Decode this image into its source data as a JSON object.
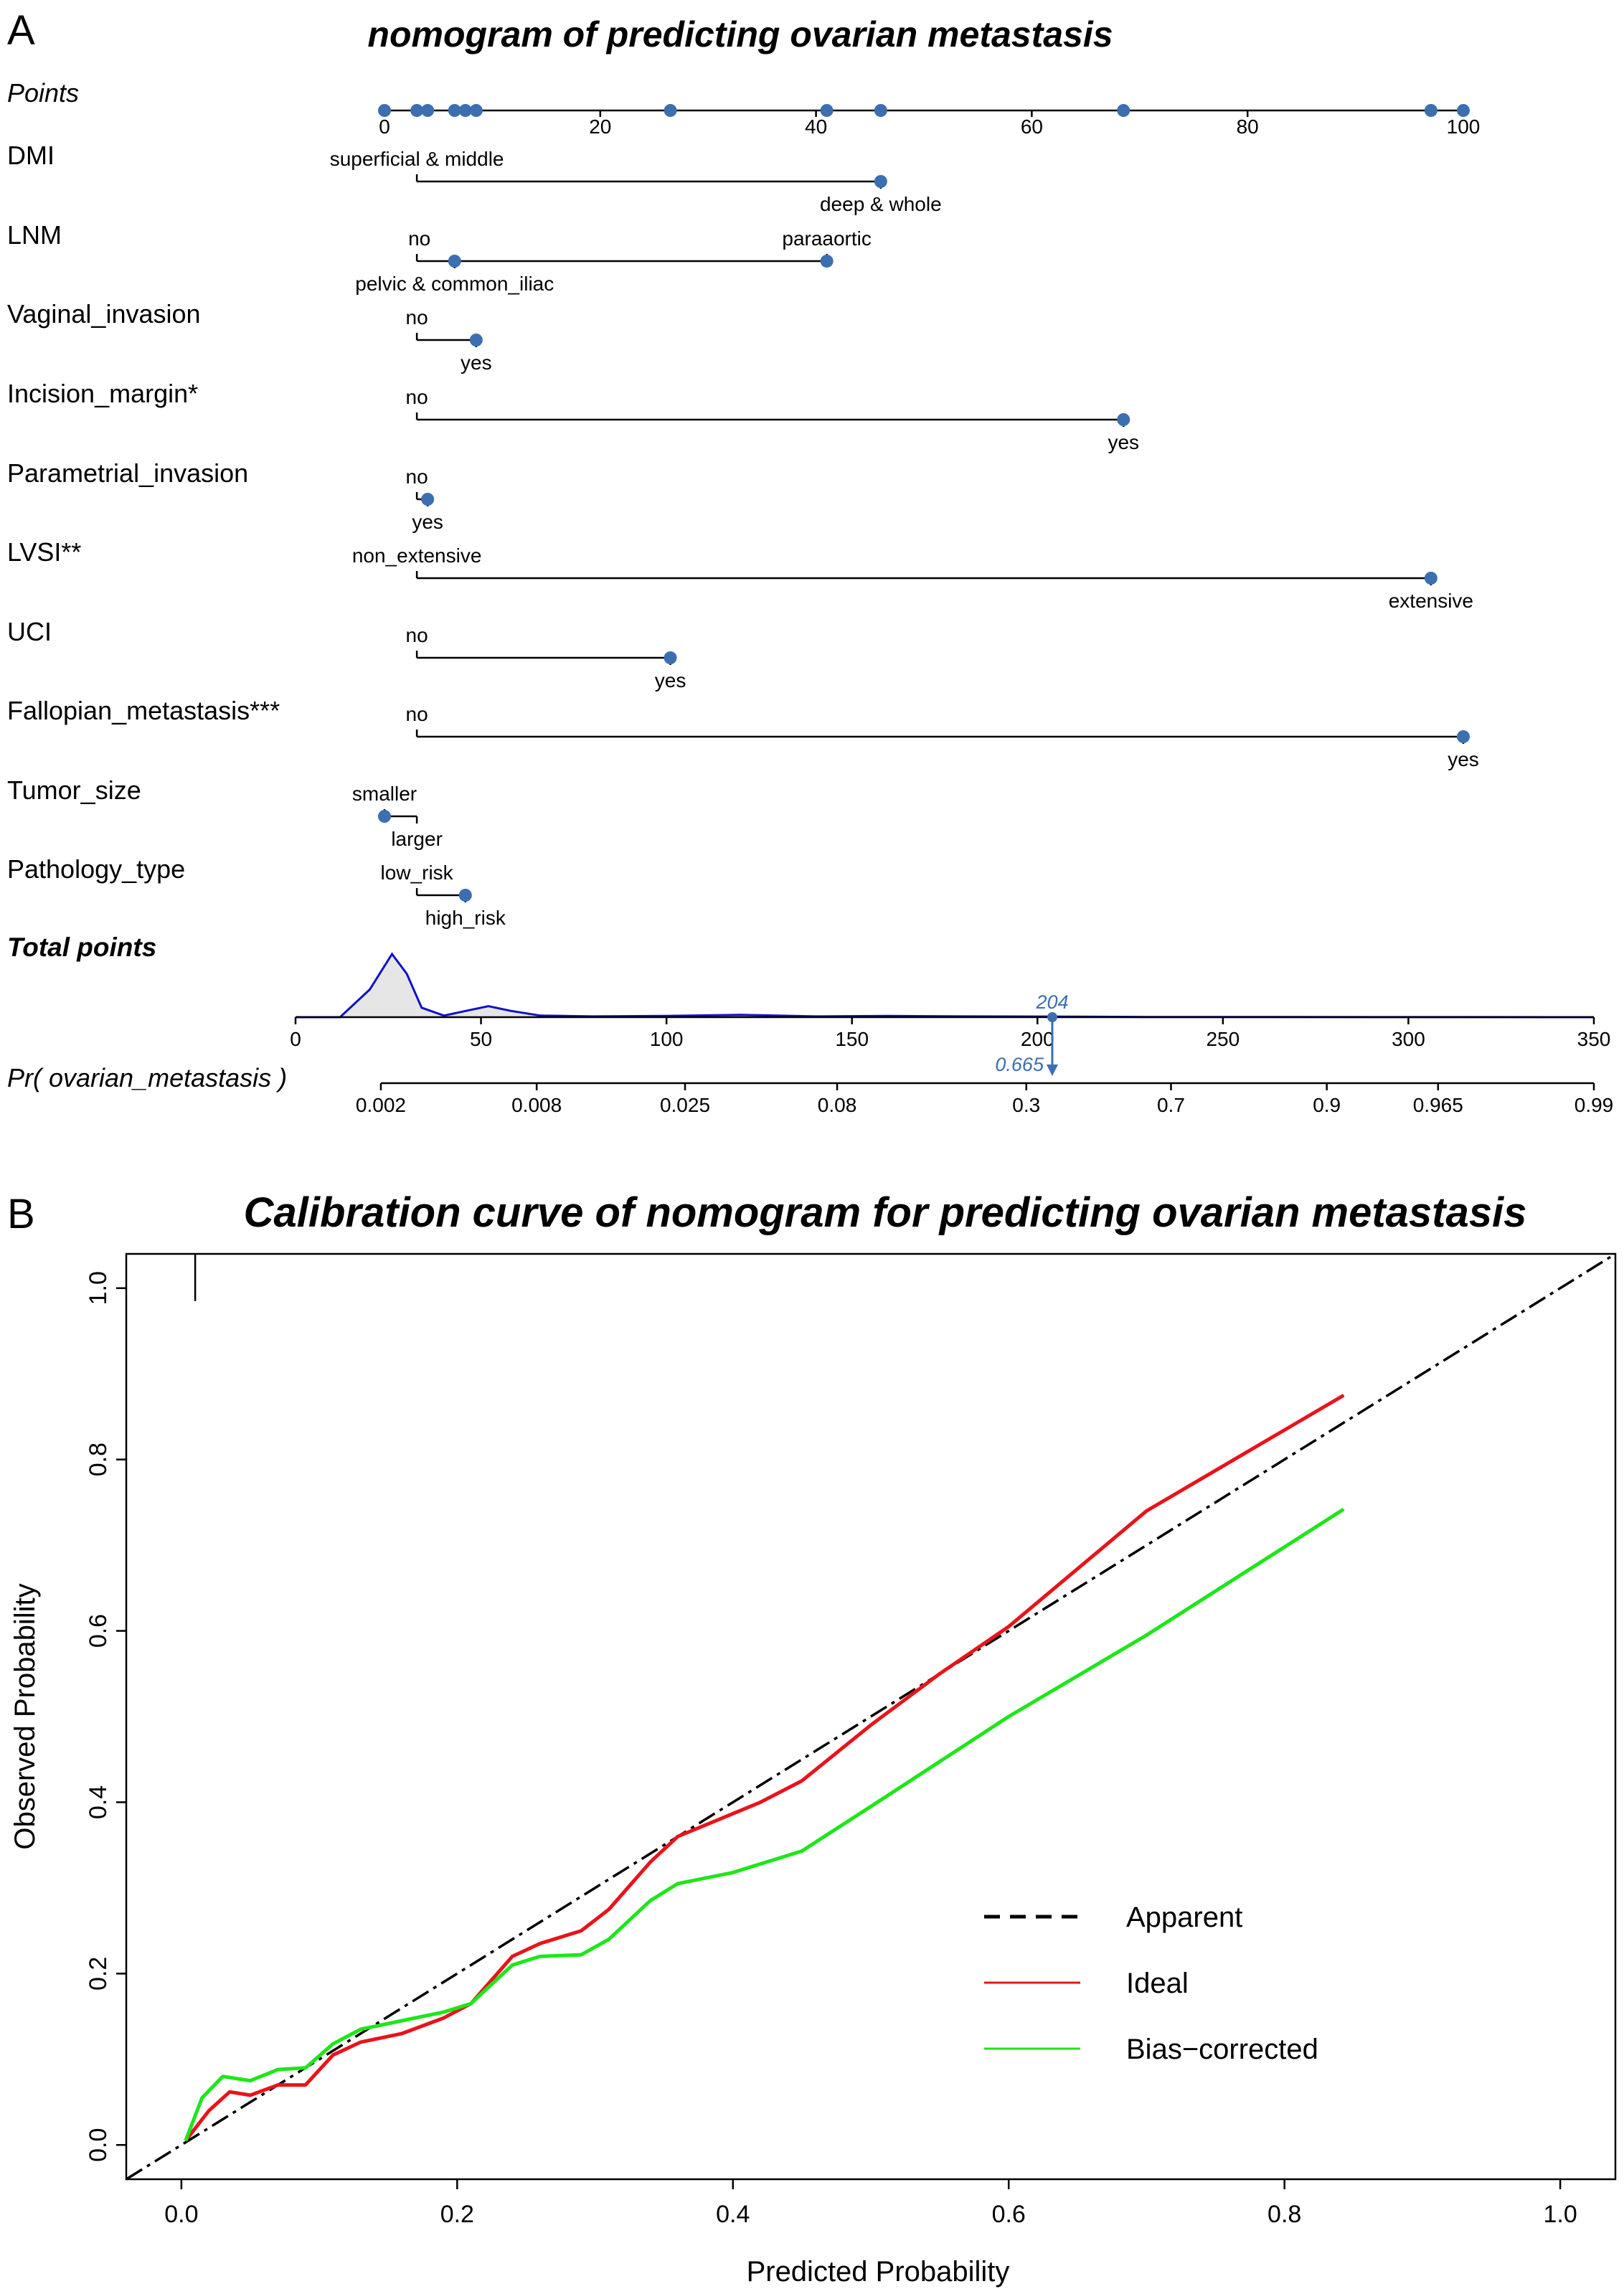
{
  "panel_a": {
    "letter": "A",
    "title": "nomogram of predicting ovarian metastasis",
    "points_axis": {
      "label": "Points",
      "ticks": [
        "0",
        "20",
        "40",
        "60",
        "80",
        "100"
      ],
      "tick_values": [
        0,
        20,
        40,
        60,
        80,
        100
      ]
    },
    "variables": [
      {
        "name": "DMI",
        "levels": [
          {
            "label": "superficial & middle",
            "points": 3
          },
          {
            "label": "deep & whole",
            "points": 46
          }
        ]
      },
      {
        "name": "LNM",
        "levels": [
          {
            "label": "no",
            "points": 3
          },
          {
            "label": "pelvic & common_iliac",
            "points": 6.5
          },
          {
            "label": "paraaortic",
            "points": 41
          }
        ]
      },
      {
        "name": "Vaginal_invasion",
        "levels": [
          {
            "label": "no",
            "points": 3
          },
          {
            "label": "yes",
            "points": 8.5
          }
        ]
      },
      {
        "name": "Incision_margin*",
        "levels": [
          {
            "label": "no",
            "points": 3
          },
          {
            "label": "yes",
            "points": 68.5
          }
        ]
      },
      {
        "name": "Parametrial_invasion",
        "levels": [
          {
            "label": "no",
            "points": 3
          },
          {
            "label": "yes",
            "points": 4
          }
        ]
      },
      {
        "name": "LVSI**",
        "levels": [
          {
            "label": "non_extensive",
            "points": 3
          },
          {
            "label": "extensive",
            "points": 97
          }
        ]
      },
      {
        "name": "UCI",
        "levels": [
          {
            "label": "no",
            "points": 3
          },
          {
            "label": "yes",
            "points": 26.5
          }
        ]
      },
      {
        "name": "Fallopian_metastasis***",
        "levels": [
          {
            "label": "no",
            "points": 3
          },
          {
            "label": "yes",
            "points": 100
          }
        ]
      },
      {
        "name": "Tumor_size",
        "levels": [
          {
            "label": "smaller",
            "points": 0
          },
          {
            "label": "larger",
            "points": 3
          }
        ]
      },
      {
        "name": "Pathology_type",
        "levels": [
          {
            "label": "low_risk",
            "points": 3
          },
          {
            "label": "high_risk",
            "points": 7.5
          }
        ]
      }
    ],
    "total_points": {
      "label": "Total points",
      "ticks": [
        "0",
        "50",
        "100",
        "150",
        "200",
        "250",
        "300",
        "350"
      ],
      "tick_values": [
        0,
        50,
        100,
        150,
        200,
        250,
        300,
        350
      ],
      "marker_value": 204,
      "marker_label": "204"
    },
    "probability": {
      "label": "Pr( ovarian_metastasis )",
      "ticks": [
        "0.002",
        "0.008",
        "0.025",
        "0.08",
        "0.3",
        "0.7",
        "0.9",
        "0.965",
        "0.99"
      ],
      "tick_total_points": [
        23,
        65,
        105,
        146,
        197,
        236,
        278,
        308,
        350
      ],
      "marker_value": 0.665,
      "marker_label": "0.665"
    },
    "density_curve": {
      "total_points": [
        0,
        12,
        20,
        26,
        30,
        34,
        40,
        46,
        52,
        58,
        66,
        80,
        100,
        120,
        140,
        160,
        180,
        200,
        230,
        260,
        300,
        350
      ],
      "density": [
        0,
        0,
        0.35,
        0.8,
        0.55,
        0.12,
        0.02,
        0.08,
        0.14,
        0.08,
        0.02,
        0.01,
        0.015,
        0.03,
        0.01,
        0.015,
        0.01,
        0.008,
        0.003,
        0.002,
        0.001,
        0
      ]
    }
  },
  "panel_b": {
    "letter": "B",
    "title": "Calibration curve of nomogram for predicting ovarian metastasis",
    "legend": [
      "Apparent",
      "Ideal",
      "Bias−corrected"
    ],
    "colors": {
      "apparent": "#000000",
      "ideal": "#e8141b",
      "bias_corrected": "#1ee61a",
      "blue": "#3b6fb0"
    }
  },
  "chart_data": {
    "type": "line",
    "title": "Calibration curve of nomogram for predicting ovarian metastasis",
    "xlabel": "Predicted Probability",
    "ylabel": "Observed Probability",
    "xlim": [
      -0.04,
      1.04
    ],
    "ylim": [
      -0.04,
      1.04
    ],
    "xticks": [
      "0.0",
      "0.2",
      "0.4",
      "0.6",
      "0.8",
      "1.0"
    ],
    "yticks": [
      "0.0",
      "0.2",
      "0.4",
      "0.6",
      "0.8",
      "1.0"
    ],
    "tick_values": [
      0,
      0.2,
      0.4,
      0.6,
      0.8,
      1.0
    ],
    "rug": [
      0.01
    ],
    "series": [
      {
        "name": "Apparent",
        "style": "dashed",
        "x": [
          -0.04,
          1.04
        ],
        "y": [
          -0.04,
          1.04
        ]
      },
      {
        "name": "Ideal",
        "x": [
          0.003,
          0.02,
          0.035,
          0.05,
          0.07,
          0.09,
          0.11,
          0.13,
          0.16,
          0.19,
          0.21,
          0.24,
          0.26,
          0.29,
          0.31,
          0.34,
          0.36,
          0.39,
          0.42,
          0.45,
          0.5,
          0.55,
          0.6,
          0.7,
          0.843
        ],
        "y": [
          0.005,
          0.04,
          0.062,
          0.058,
          0.07,
          0.07,
          0.105,
          0.12,
          0.13,
          0.148,
          0.165,
          0.22,
          0.235,
          0.25,
          0.275,
          0.33,
          0.36,
          0.38,
          0.4,
          0.425,
          0.49,
          0.55,
          0.605,
          0.74,
          0.875
        ]
      },
      {
        "name": "Bias-corrected",
        "x": [
          0.003,
          0.015,
          0.03,
          0.05,
          0.07,
          0.09,
          0.11,
          0.13,
          0.16,
          0.19,
          0.21,
          0.24,
          0.26,
          0.29,
          0.31,
          0.34,
          0.36,
          0.4,
          0.45,
          0.5,
          0.6,
          0.7,
          0.843
        ],
        "y": [
          0.005,
          0.055,
          0.08,
          0.075,
          0.088,
          0.09,
          0.118,
          0.135,
          0.145,
          0.155,
          0.165,
          0.21,
          0.22,
          0.222,
          0.24,
          0.285,
          0.305,
          0.318,
          0.343,
          0.395,
          0.5,
          0.595,
          0.742
        ]
      }
    ]
  }
}
